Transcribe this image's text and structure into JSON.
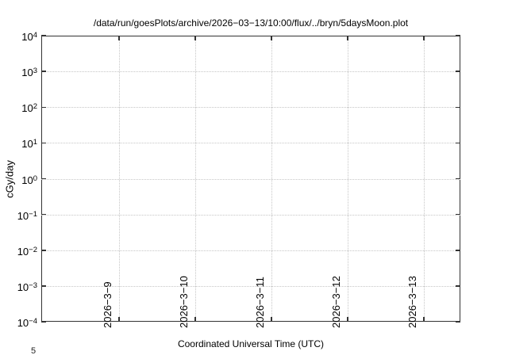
{
  "title": "/data/run/goesPlots/archive/2026−03−13/10:00/flux/../bryn/5daysMoon.plot",
  "axes": {
    "x": {
      "label": "Coordinated Universal Time (UTC)",
      "tick_labels": [
        "2026−3−9",
        "2026−3−10",
        "2026−3−11",
        "2026−3−12",
        "2026−3−13"
      ]
    },
    "y": {
      "label": "cGy/day",
      "tick_base": "10",
      "tick_exponents": [
        "4",
        "3",
        "2",
        "1",
        "0",
        "−1",
        "−2",
        "−3",
        "−4"
      ]
    }
  },
  "truncated_label_fragment": "5",
  "colors": {
    "background": "#ffffff",
    "axis": "#333333",
    "grid": "#c6c6c6",
    "text": "#000000"
  },
  "chart_data": {
    "type": "line",
    "title": "/data/run/goesPlots/archive/2026−03−13/10:00/flux/../bryn/5daysMoon.plot",
    "xlabel": "Coordinated Universal Time (UTC)",
    "ylabel": "cGy/day",
    "x_ticks": [
      "2026−3−9",
      "2026−3−10",
      "2026−3−11",
      "2026−3−12",
      "2026−3−13"
    ],
    "y_scale": "log",
    "y_ticks": [
      "1e4",
      "1e3",
      "1e2",
      "1e1",
      "1e0",
      "1e-1",
      "1e-2",
      "1e-3",
      "1e-4"
    ],
    "ylim": [
      0.0001,
      10000
    ],
    "grid": true,
    "legend": "none",
    "series": []
  }
}
